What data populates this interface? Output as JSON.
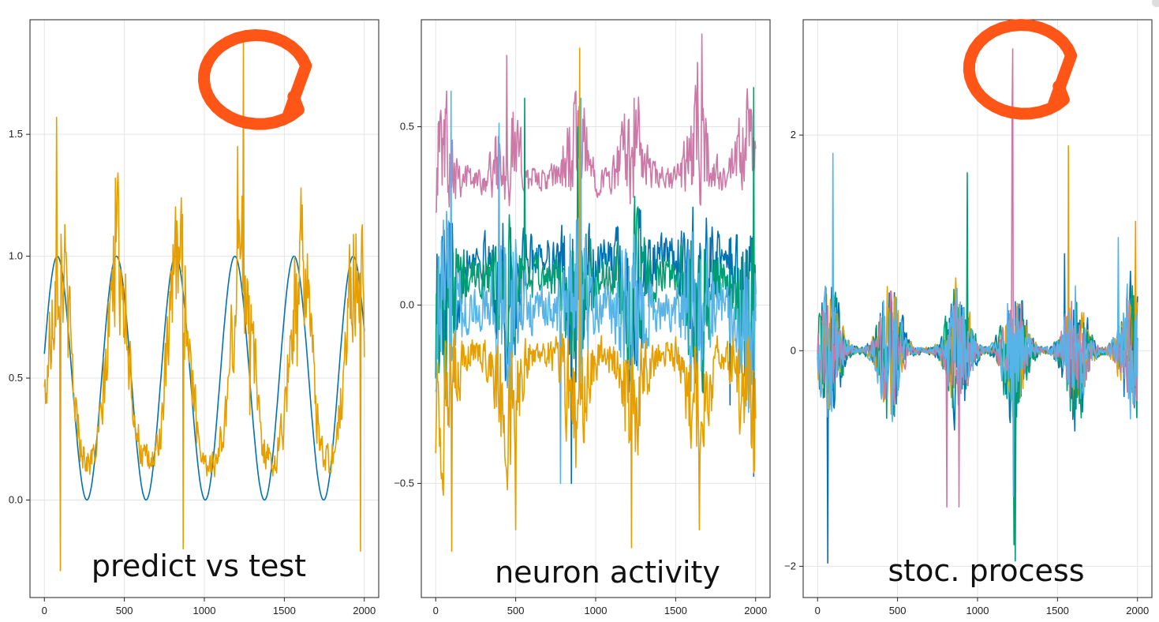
{
  "colors": {
    "blue": "#0072b2",
    "orange": "#e69f00",
    "green": "#009e73",
    "skyblue": "#56b4e9",
    "pink": "#cc79a7",
    "highlight": "#ff5617"
  },
  "chart_data": [
    {
      "type": "line",
      "annotation": "predict vs test",
      "xlim": [
        -90,
        2090
      ],
      "ylim": [
        -0.4,
        1.97
      ],
      "xticks": [
        0,
        500,
        1000,
        1500,
        2000
      ],
      "yticks": [
        0.0,
        0.5,
        1.0,
        1.5
      ],
      "yticklabels": [
        "0.0",
        "0.5",
        "1.0",
        "1.5"
      ],
      "grid": true,
      "highlight_circle": {
        "cx": 1320,
        "cy": 1.72
      },
      "series": [
        {
          "color": "blue",
          "kind": "sine",
          "offset": 0.5,
          "amp": 0.5,
          "period": 370,
          "phase": 0.2
        },
        {
          "color": "orange",
          "kind": "noisy_pulse",
          "base": 0.14,
          "peak": 1.0,
          "noise": 0.32,
          "period": 370,
          "peaks_at": [
            95,
            460,
            840,
            1235,
            1600,
            1950
          ],
          "spikes": [
            [
              75,
              1.57
            ],
            [
              130,
              1.13
            ],
            [
              445,
              1.32
            ],
            [
              855,
              1.24
            ],
            [
              1245,
              1.88
            ],
            [
              1210,
              1.45
            ],
            [
              1605,
              1.28
            ],
            [
              1580,
              0.55
            ],
            [
              100,
              -0.29
            ],
            [
              870,
              -0.2
            ],
            [
              1975,
              -0.21
            ],
            [
              1285,
              0.35
            ]
          ]
        }
      ]
    },
    {
      "type": "line",
      "annotation": "neuron activity",
      "xlim": [
        -90,
        2090
      ],
      "ylim": [
        -0.82,
        0.8
      ],
      "xticks": [
        0,
        500,
        1000,
        1500,
        2000
      ],
      "yticks": [
        -0.5,
        0.0,
        0.5
      ],
      "yticklabels": [
        "−0.5",
        "0.0",
        "0.5"
      ],
      "grid": true,
      "series": [
        {
          "color": "pink",
          "kind": "noisy_pulse",
          "base": 0.35,
          "peak": 0.45,
          "noise": 0.18,
          "period": 370,
          "peaks_at": [
            55,
            450,
            880,
            1230,
            1640,
            1960
          ],
          "spikes": [
            [
              70,
              0.6
            ],
            [
              445,
              0.7
            ],
            [
              875,
              0.6
            ],
            [
              1240,
              0.58
            ],
            [
              1665,
              0.76
            ],
            [
              1635,
              0.68
            ],
            [
              1965,
              0.55
            ]
          ]
        },
        {
          "color": "blue",
          "kind": "noisy_pulse",
          "base": 0.14,
          "peak": 0.0,
          "noise": 0.28,
          "period": 370,
          "peaks_at": [
            55,
            450,
            880,
            1230,
            1640,
            1960
          ],
          "spikes": [
            [
              1840,
              -0.28
            ],
            [
              1990,
              -0.48
            ],
            [
              850,
              -0.5
            ]
          ]
        },
        {
          "color": "green",
          "kind": "noisy_pulse",
          "base": 0.08,
          "peak": 0.0,
          "noise": 0.28,
          "period": 370,
          "peaks_at": [
            55,
            450,
            880,
            1230,
            1640,
            1960
          ],
          "spikes": [
            [
              555,
              0.58
            ],
            [
              1990,
              0.61
            ],
            [
              890,
              0.5
            ]
          ]
        },
        {
          "color": "skyblue",
          "kind": "noisy_pulse",
          "base": -0.01,
          "peak": 0.0,
          "noise": 0.3,
          "period": 370,
          "peaks_at": [
            55,
            450,
            880,
            1230,
            1640,
            1960
          ],
          "spikes": [
            [
              910,
              0.58
            ],
            [
              395,
              0.51
            ],
            [
              780,
              -0.5
            ],
            [
              95,
              0.6
            ]
          ]
        },
        {
          "color": "orange",
          "kind": "noisy_pulse",
          "base": -0.13,
          "peak": -0.3,
          "noise": 0.22,
          "period": 370,
          "peaks_at": [
            55,
            450,
            880,
            1230,
            1640,
            1960
          ],
          "spikes": [
            [
              100,
              -0.69
            ],
            [
              500,
              -0.63
            ],
            [
              900,
              0.72
            ],
            [
              1225,
              -0.68
            ],
            [
              1650,
              -0.63
            ],
            [
              1990,
              -0.47
            ]
          ]
        }
      ]
    },
    {
      "type": "line",
      "annotation": "stoc. process",
      "xlim": [
        -90,
        2090
      ],
      "ylim": [
        -2.29,
        3.07
      ],
      "xticks": [
        0,
        500,
        1000,
        1500,
        2000
      ],
      "yticks": [
        -2,
        0,
        2
      ],
      "yticklabels": [
        "−2",
        "0",
        "2"
      ],
      "grid": true,
      "highlight_circle": {
        "cx": 1270,
        "cy": 2.6
      },
      "series": [
        {
          "color": "blue",
          "kind": "burst",
          "amp": 0.65,
          "period": 370,
          "peaks_at": [
            70,
            450,
            880,
            1230,
            1610,
            1960
          ],
          "spikes": [
            [
              65,
              -1.97
            ],
            [
              1545,
              0.9
            ]
          ]
        },
        {
          "color": "orange",
          "kind": "burst",
          "amp": 0.6,
          "period": 370,
          "peaks_at": [
            70,
            450,
            880,
            1230,
            1610,
            1960
          ],
          "spikes": [
            [
              1570,
              1.9
            ],
            [
              1990,
              1.2
            ],
            [
              870,
              0.5
            ]
          ]
        },
        {
          "color": "green",
          "kind": "burst",
          "amp": 0.65,
          "period": 370,
          "peaks_at": [
            70,
            450,
            880,
            1230,
            1610,
            1960
          ],
          "spikes": [
            [
              1230,
              -1.8
            ],
            [
              1235,
              -1.95
            ],
            [
              935,
              1.65
            ]
          ]
        },
        {
          "color": "pink",
          "kind": "burst",
          "amp": 0.5,
          "period": 370,
          "peaks_at": [
            70,
            450,
            880,
            1230,
            1610,
            1960
          ],
          "spikes": [
            [
              1220,
              2.8
            ],
            [
              1215,
              2.2
            ],
            [
              885,
              -1.45
            ],
            [
              810,
              -1.45
            ]
          ]
        },
        {
          "color": "skyblue",
          "kind": "burst",
          "amp": 0.6,
          "period": 370,
          "peaks_at": [
            70,
            450,
            880,
            1230,
            1610,
            1960
          ],
          "spikes": [
            [
              95,
              1.83
            ],
            [
              1225,
              -1.35
            ],
            [
              1880,
              1.05
            ]
          ]
        }
      ]
    }
  ]
}
